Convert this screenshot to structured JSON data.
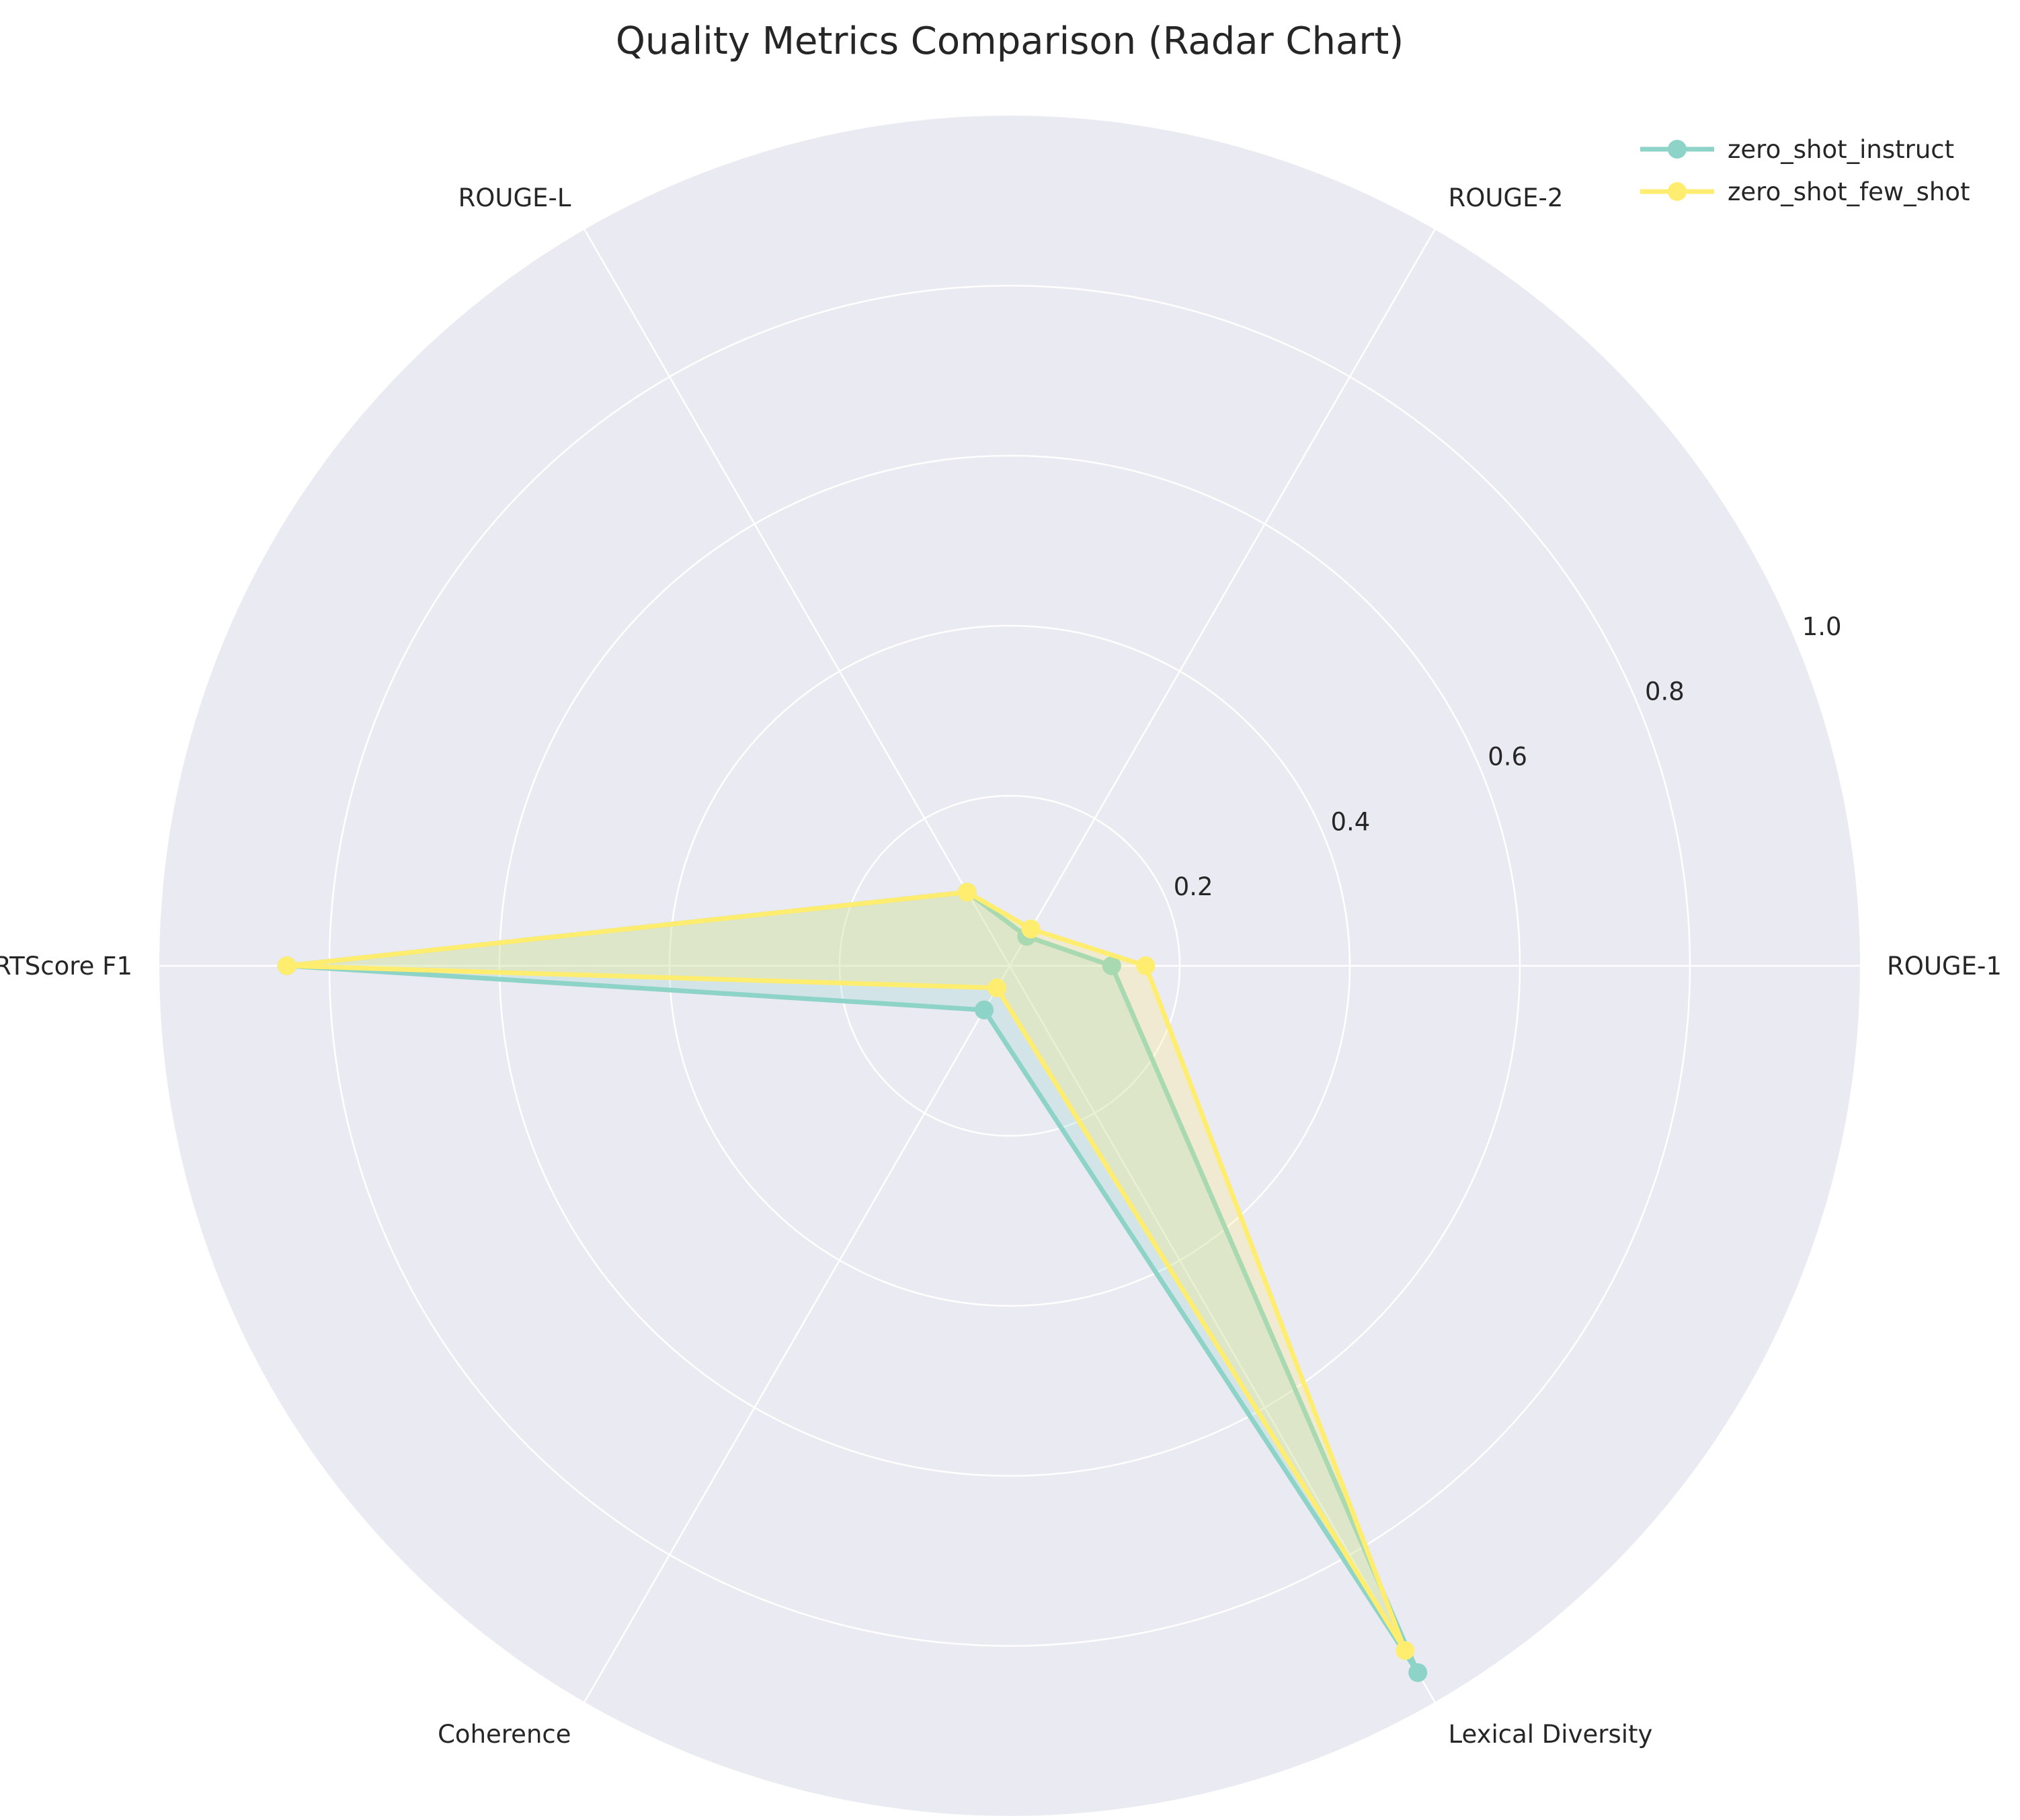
{
  "chart_data": {
    "type": "radar",
    "title": "Quality Metrics Comparison (Radar Chart)",
    "categories": [
      "ROUGE-1",
      "ROUGE-2",
      "ROUGE-L",
      "BERTScore F1",
      "Coherence",
      "Lexical Diversity"
    ],
    "rlim": [
      0,
      1.0
    ],
    "radial_ticks": [
      0.2,
      0.4,
      0.6,
      0.8,
      1.0
    ],
    "radial_tick_labels": [
      "0.2",
      "0.4",
      "0.6",
      "0.8",
      "1.0"
    ],
    "grid": true,
    "legend_position": "top-right",
    "series": [
      {
        "name": "zero_shot_instruct",
        "color": "#8dd3c7",
        "values": [
          0.12,
          0.04,
          0.1,
          0.85,
          0.06,
          0.96
        ]
      },
      {
        "name": "zero_shot_few_shot",
        "color": "#ffed6f",
        "values": [
          0.16,
          0.05,
          0.1,
          0.85,
          0.03,
          0.93
        ]
      }
    ]
  },
  "colors": {
    "plot_background": "#eaeaf2",
    "grid": "#ffffff",
    "text": "#262626"
  }
}
